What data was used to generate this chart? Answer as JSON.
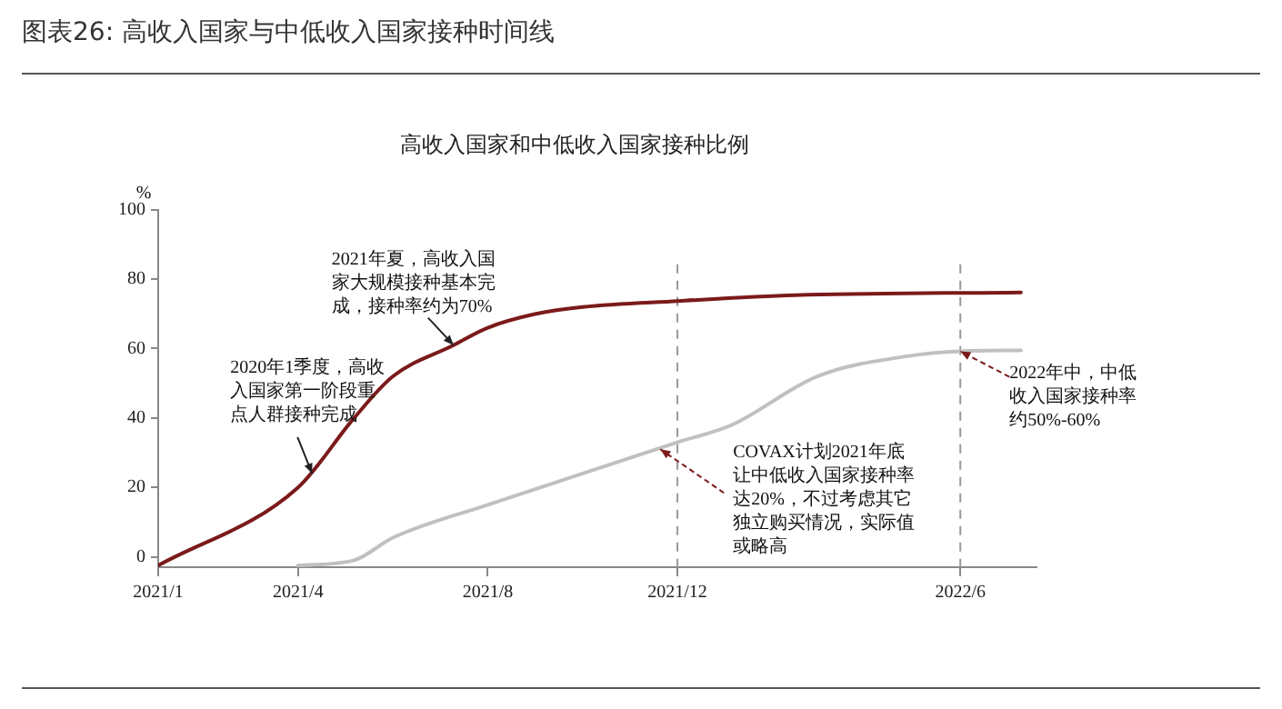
{
  "chart_data": {
    "type": "line",
    "title": "图表26: 高收入国家与中低收入国家接种时间线",
    "subtitle": "高收入国家和中低收入国家接种比例",
    "ylabel": "%",
    "series": [
      {
        "color": "#7b1a1a",
        "x": [
          "2021-01-01",
          "2021-04-01",
          "2021-05-07",
          "2021-06-01",
          "2021-07-10",
          "2021-08-01",
          "2021-09-01",
          "2021-10-01",
          "2021-12-01",
          "2022-02-15",
          "2022-07-10"
        ],
        "values": [
          -2.5,
          20,
          40,
          52,
          61,
          66,
          70,
          72,
          73.7,
          75.4,
          76.2
        ]
      },
      {
        "color": "#c0c0c0",
        "x": [
          "2021-04-01",
          "2021-05-07",
          "2021-06-01",
          "2021-08-01",
          "2021-12-01",
          "2022-01-05",
          "2022-03-01",
          "2022-05-01",
          "2022-06-01",
          "2022-07-10"
        ],
        "values": [
          -2.5,
          -1,
          5.5,
          15,
          33,
          38,
          52,
          58,
          59.2,
          59.5
        ]
      }
    ],
    "xlim": [
      "2021-01-01",
      "2022-07-20"
    ],
    "xticks": [
      {
        "value": "2021-01-01",
        "label": "2021/1"
      },
      {
        "value": "2021-04-01",
        "label": "2021/4"
      },
      {
        "value": "2021-08-01",
        "label": "2021/8"
      },
      {
        "value": "2021-12-01",
        "label": "2021/12"
      },
      {
        "value": "2022-06-01",
        "label": "2022/6"
      }
    ],
    "ylim": [
      -3,
      100
    ],
    "yticks": [
      0,
      20,
      40,
      60,
      80,
      100
    ],
    "ref_lines": [
      {
        "axis": "x",
        "value": "2021-12-01",
        "color": "#999999",
        "line_style": "dashed"
      },
      {
        "axis": "x",
        "value": "2022-06-01",
        "color": "#999999",
        "line_style": "dashed"
      }
    ],
    "annotations": [
      {
        "text": "2020年1季度，高收入国家第一阶段重点人群接种完成",
        "x": "2021-04-10",
        "y": 24
      },
      {
        "text": "2021年夏，高收入国家大规模接种基本完成，接种率约为70%",
        "x": "2021-07-10",
        "y": 61
      },
      {
        "text": "COVAX计划2021年底让中低收入国家接种率达20%，不过考虑其它独立购买情况，实际值或略高",
        "x": "2021-11-20",
        "y": 31
      },
      {
        "text": "2022年中，中低收入国家接种率约50%-60%",
        "x": "2022-06-01",
        "y": 59.2
      }
    ],
    "grid": false,
    "legend": false,
    "marker": "none",
    "line_style": "solid"
  }
}
